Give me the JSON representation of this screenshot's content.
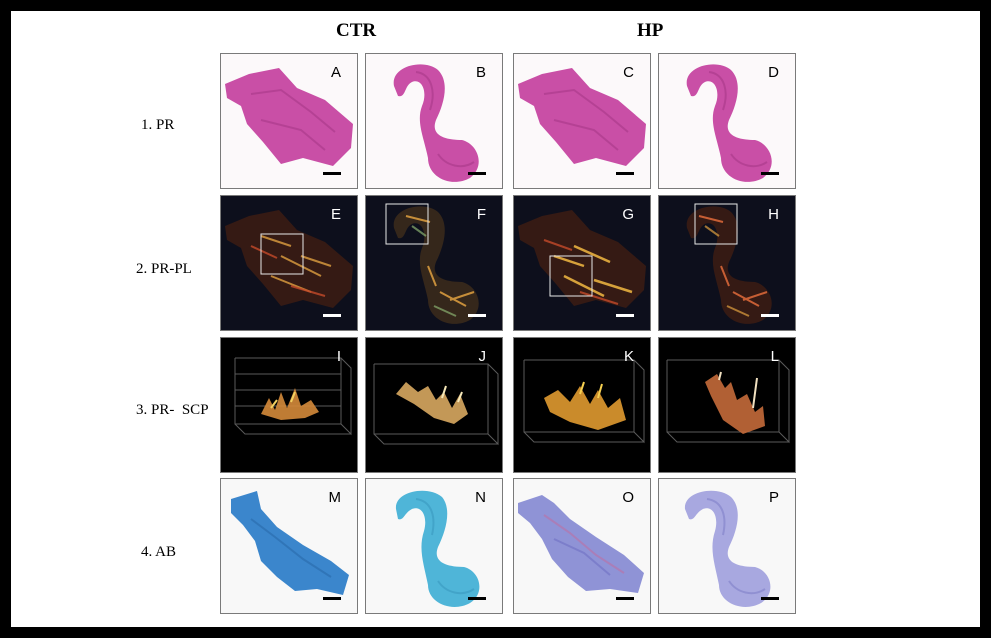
{
  "columns": {
    "ctr": "CTR",
    "hp": "HP"
  },
  "rows": [
    {
      "label": "1. PR"
    },
    {
      "label": "2. PR-PL"
    },
    {
      "label": "3. PR-  SCP"
    },
    {
      "label": "4. AB"
    }
  ],
  "panels": {
    "a": "A",
    "b": "B",
    "c": "C",
    "d": "D",
    "e": "E",
    "f": "F",
    "g": "G",
    "h": "H",
    "i": "I",
    "j": "J",
    "k": "K",
    "l": "L",
    "m": "M",
    "n": "N",
    "o": "O",
    "p": "P"
  },
  "colors": {
    "pr_stain": "#c94fa6",
    "pl_background": "#0d0f1c",
    "birefringence": "#e0a040",
    "ab_light_blue": "#4fb5d8",
    "ab_dark_blue": "#3b86cc",
    "ab_purple": "#8f93d6"
  }
}
